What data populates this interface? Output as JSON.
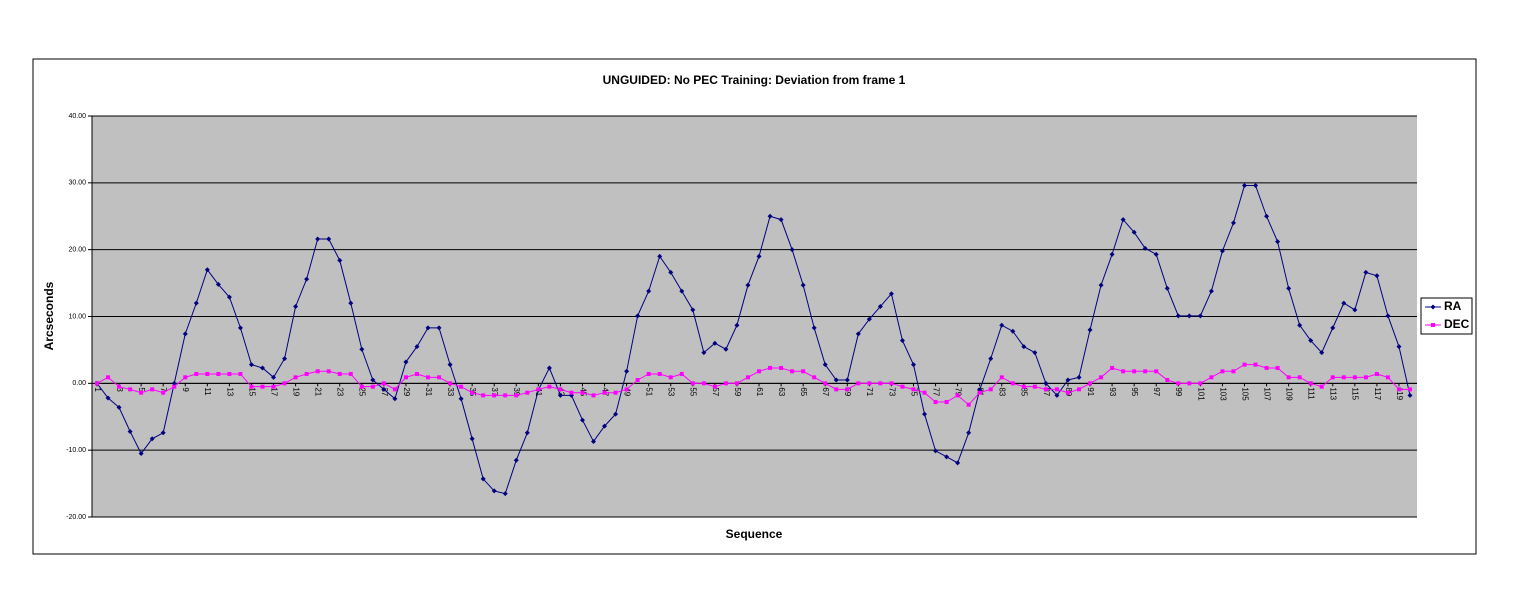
{
  "chart_data": {
    "type": "line",
    "title": "UNGUIDED: No PEC Training: Deviation from frame 1",
    "x_label": "Sequence",
    "y_label": "Arcseconds",
    "categories": [
      1,
      null,
      3,
      null,
      5,
      null,
      7,
      null,
      9,
      null,
      11,
      null,
      13,
      null,
      15,
      null,
      17,
      null,
      19,
      null,
      21,
      null,
      23,
      null,
      25,
      null,
      27,
      null,
      29,
      null,
      31,
      null,
      33,
      null,
      35,
      null,
      37,
      null,
      39,
      null,
      41,
      null,
      43,
      null,
      45,
      null,
      47,
      null,
      49,
      null,
      51,
      null,
      53,
      null,
      55,
      null,
      57,
      null,
      59,
      null,
      61,
      null,
      63,
      null,
      65,
      null,
      67,
      null,
      69,
      null,
      71,
      null,
      73,
      null,
      75,
      null,
      77,
      null,
      79,
      null,
      81,
      null,
      83,
      null,
      85,
      null,
      87,
      null,
      89,
      null,
      91,
      null,
      93,
      null,
      95,
      null,
      97,
      null,
      99,
      null,
      101,
      null,
      103,
      null,
      105,
      null,
      107,
      null,
      109,
      null,
      111,
      null,
      113,
      null,
      115,
      null,
      117,
      null,
      119,
      null
    ],
    "series": [
      {
        "name": "RA",
        "color": "#000080",
        "values": [
          0,
          -2.2,
          -3.6,
          -7.2,
          -10.5,
          -8.3,
          -7.4,
          0,
          7.4,
          12,
          17,
          14.8,
          12.9,
          8.3,
          2.8,
          2.3,
          0.9,
          3.7,
          11.5,
          15.6,
          21.6,
          21.6,
          18.4,
          12,
          5.1,
          0.5,
          -0.9,
          -2.3,
          3.2,
          5.5,
          8.3,
          8.3,
          2.8,
          -2.3,
          -8.3,
          -14.3,
          -16.1,
          -16.5,
          -11.5,
          -7.4,
          -1,
          2.3,
          -1.8,
          -1.8,
          -5.5,
          -8.7,
          -6.4,
          -4.6,
          1.8,
          10.1,
          13.8,
          19,
          16.6,
          13.8,
          11,
          4.6,
          6,
          5.1,
          8.7,
          14.7,
          19,
          25,
          24.5,
          20,
          14.7,
          8.3,
          2.8,
          0.5,
          0.5,
          7.4,
          9.6,
          11.5,
          13.4,
          6.4,
          2.8,
          -4.6,
          -10.1,
          -11,
          -11.9,
          -7.4,
          -1,
          3.7,
          8.7,
          7.8,
          5.5,
          4.6,
          0,
          -1.8,
          0.5,
          0.9,
          8,
          14.7,
          19.3,
          24.5,
          22.6,
          20.2,
          19.3,
          14.2,
          10.1,
          10.1,
          10.1,
          13.8,
          19.8,
          24,
          29.6,
          29.6,
          25,
          21.2,
          14.2,
          8.7,
          6.4,
          4.6,
          8.3,
          12,
          11,
          16.6,
          16.1,
          10.1,
          5.5,
          -1.8
        ]
      },
      {
        "name": "DEC",
        "color": "#ff00ff",
        "values": [
          0,
          0.9,
          -0.5,
          -0.9,
          -1.4,
          -0.9,
          -1.4,
          -0.5,
          0.9,
          1.4,
          1.4,
          1.4,
          1.4,
          1.4,
          -0.5,
          -0.5,
          -0.5,
          0,
          0.9,
          1.4,
          1.8,
          1.8,
          1.4,
          1.4,
          -0.5,
          -0.5,
          0,
          -0.9,
          0.9,
          1.4,
          0.9,
          0.9,
          0,
          -0.5,
          -1.4,
          -1.8,
          -1.8,
          -1.8,
          -1.8,
          -1.4,
          -0.9,
          -0.5,
          -0.9,
          -1.4,
          -1.4,
          -1.8,
          -1.4,
          -1.4,
          -0.9,
          0.5,
          1.4,
          1.4,
          0.9,
          1.4,
          0,
          0,
          -0.5,
          0,
          0,
          0.9,
          1.8,
          2.3,
          2.3,
          1.8,
          1.8,
          0.9,
          0,
          -0.9,
          -0.9,
          0,
          0,
          0,
          0,
          -0.5,
          -0.9,
          -1.4,
          -2.8,
          -2.8,
          -1.8,
          -3.2,
          -1.4,
          -0.9,
          0.9,
          0,
          -0.5,
          -0.5,
          -0.9,
          -0.9,
          -1.4,
          -0.9,
          0,
          0.9,
          2.3,
          1.8,
          1.8,
          1.8,
          1.8,
          0.5,
          0,
          0,
          0,
          0.9,
          1.8,
          1.8,
          2.8,
          2.8,
          2.3,
          2.3,
          0.9,
          0.9,
          0,
          -0.5,
          0.9,
          0.9,
          0.9,
          0.9,
          1.4,
          0.9,
          -0.9,
          -0.9
        ]
      }
    ],
    "ylim": [
      -20,
      40
    ],
    "yticks": [
      {
        "value": -20,
        "label": "-20.00"
      },
      {
        "value": -10,
        "label": "-10.00"
      },
      {
        "value": 0,
        "label": "0.00"
      },
      {
        "value": 10,
        "label": "10.00"
      },
      {
        "value": 20,
        "label": "20.00"
      },
      {
        "value": 30,
        "label": "30.00"
      },
      {
        "value": 40,
        "label": "40.00"
      }
    ],
    "grid": true,
    "legend": "right",
    "plot_background": "#c0c0c0"
  }
}
